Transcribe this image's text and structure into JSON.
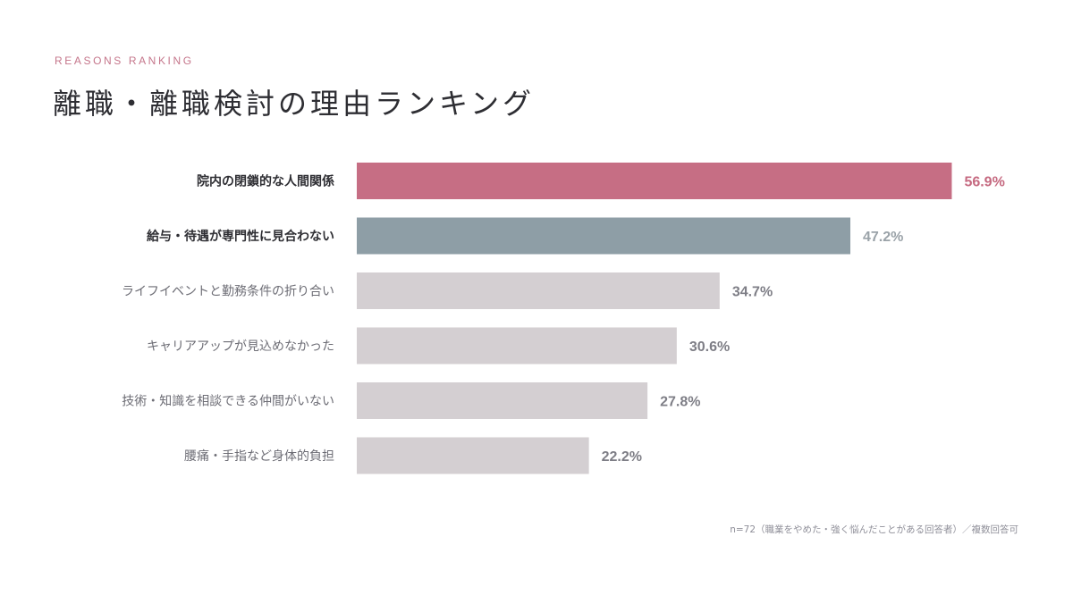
{
  "header": {
    "eyebrow": "REASONS RANKING",
    "title": "離職・離職検討の理由ランキング"
  },
  "footnote": "n=72（職業をやめた・強く悩んだことがある回答者）／複数回答可",
  "chart_data": {
    "type": "bar",
    "orientation": "horizontal",
    "categories": [
      "院内の閉鎖的な人間関係",
      "給与・待遇が専門性に見合わない",
      "ライフイベントと勤務条件の折り合い",
      "キャリアアップが見込めなかった",
      "技術・知識を相談できる仲間がいない",
      "腰痛・手指など身体的負担"
    ],
    "values": [
      56.9,
      47.2,
      34.7,
      30.6,
      27.8,
      22.2
    ],
    "value_labels": [
      "56.9%",
      "47.2%",
      "34.7%",
      "30.6%",
      "27.8%",
      "22.2%"
    ],
    "xlim": [
      0,
      59
    ],
    "grid": false,
    "legend": "none"
  },
  "colors": {
    "highlight_primary": "#c66e84",
    "highlight_secondary": "#8e9ea6",
    "bar_default": "#d4cfd2",
    "label_primary_text": "#2e2e33",
    "label_default_text": "#6d6d75",
    "value_primary_text": "#c5687f",
    "value_secondary_text": "#9aa2a8",
    "value_default_text": "#7e7e86"
  }
}
